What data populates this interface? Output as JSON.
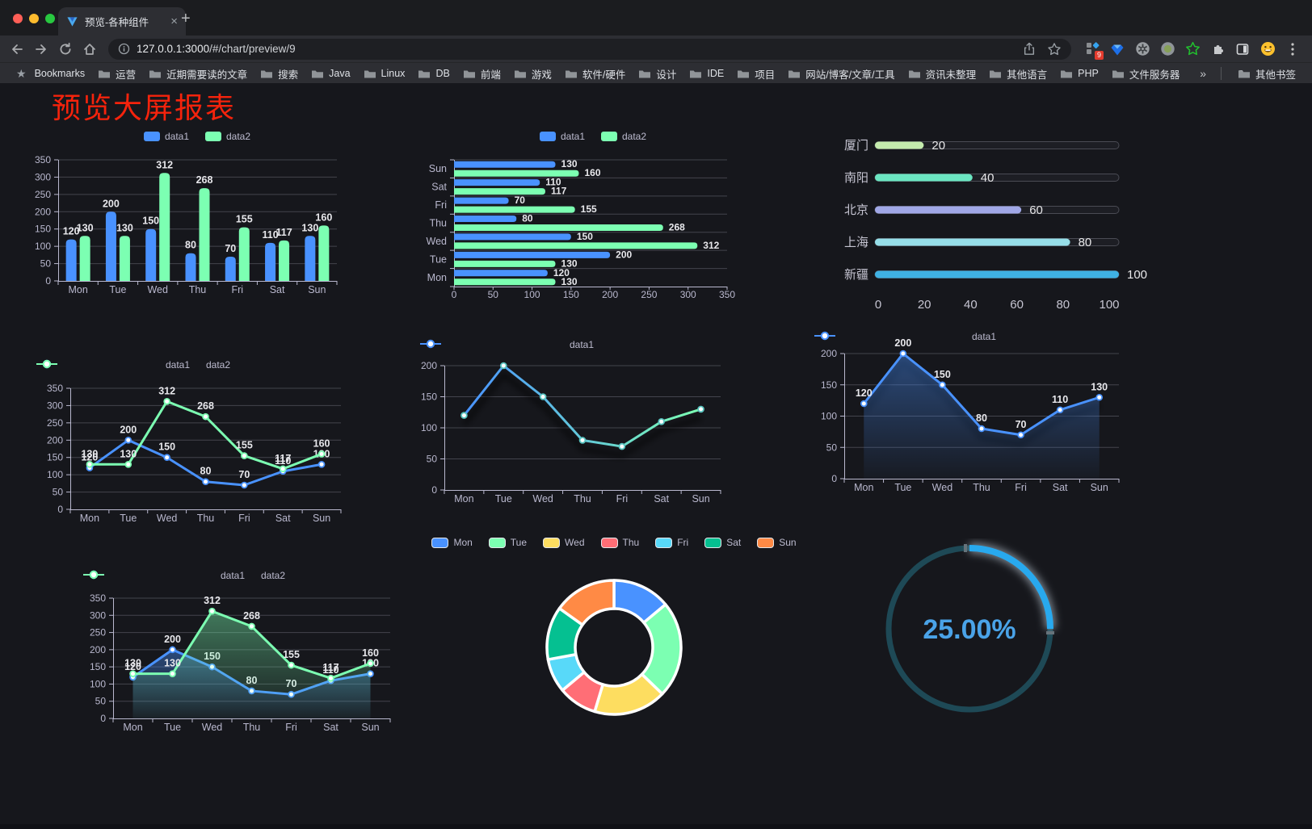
{
  "browser": {
    "traffic_lights": [
      "#ff5f57",
      "#febc2e",
      "#28c840"
    ],
    "tab": {
      "title": "预览-各种组件",
      "close_glyph": "×",
      "new_tab_glyph": "+"
    },
    "url": {
      "host": "127.0.0.1:3000",
      "path": "/#/chart/preview/9"
    },
    "extensions_badge": "9",
    "menu_glyph": "⋮",
    "bookmarks": {
      "label": "Bookmarks",
      "star_glyph": "★",
      "items": [
        "运营",
        "近期需要读的文章",
        "搜索",
        "Java",
        "Linux",
        "DB",
        "前端",
        "游戏",
        "软件/硬件",
        "设计",
        "IDE",
        "项目",
        "网站/博客/文章/工具",
        "资讯未整理",
        "其他语言",
        "PHP",
        "文件服务器"
      ],
      "overflow_glyph": "»",
      "other_label": "其他书签"
    }
  },
  "page": {
    "title": "预览大屏报表",
    "title_color": "#f5230c",
    "background": "#16171c"
  },
  "theme": {
    "axis_color": "#b9b8ce",
    "grid_color": "#43444d",
    "data_label_color": "#e8e8ec",
    "legend_text_color": "#bdbcd0"
  },
  "chart_data": [
    {
      "id": "bar-grouped",
      "type": "bar",
      "legend_position": "top",
      "grid": true,
      "categories": [
        "Mon",
        "Tue",
        "Wed",
        "Thu",
        "Fri",
        "Sat",
        "Sun"
      ],
      "series": [
        {
          "name": "data1",
          "color": "#4992ff",
          "values": [
            120,
            200,
            150,
            80,
            70,
            110,
            130
          ]
        },
        {
          "name": "data2",
          "color": "#7cffb2",
          "values": [
            130,
            130,
            312,
            268,
            155,
            117,
            160
          ]
        }
      ],
      "ylim": [
        0,
        350
      ],
      "ytick": 50,
      "value_labels": true
    },
    {
      "id": "bar-horizontal",
      "type": "bar-horizontal",
      "legend_position": "top",
      "grid": true,
      "categories_top_to_bottom": [
        "Sun",
        "Sat",
        "Fri",
        "Thu",
        "Wed",
        "Tue",
        "Mon"
      ],
      "series": [
        {
          "name": "data1",
          "color": "#4992ff",
          "values": [
            130,
            110,
            70,
            80,
            150,
            200,
            120
          ]
        },
        {
          "name": "data2",
          "color": "#7cffb2",
          "values": [
            160,
            117,
            155,
            268,
            312,
            130,
            130
          ]
        }
      ],
      "xlim": [
        0,
        350
      ],
      "xtick": 50,
      "value_labels": true
    },
    {
      "id": "progress",
      "type": "progress",
      "max": 100,
      "axis_ticks": [
        0,
        20,
        40,
        60,
        80,
        100
      ],
      "items": [
        {
          "label": "厦门",
          "value": 20,
          "color": "#c4ebad"
        },
        {
          "label": "南阳",
          "value": 40,
          "color": "#6be6c1"
        },
        {
          "label": "北京",
          "value": 60,
          "color": "#a0a7e6"
        },
        {
          "label": "上海",
          "value": 80,
          "color": "#96dee8"
        },
        {
          "label": "新疆",
          "value": 100,
          "color": "#3fb1e3"
        }
      ]
    },
    {
      "id": "line-dual",
      "type": "line",
      "legend_position": "top",
      "grid": true,
      "categories": [
        "Mon",
        "Tue",
        "Wed",
        "Thu",
        "Fri",
        "Sat",
        "Sun"
      ],
      "series": [
        {
          "name": "data1",
          "color": "#4992ff",
          "values": [
            120,
            200,
            150,
            80,
            70,
            110,
            130
          ]
        },
        {
          "name": "data2",
          "color": "#7cffb2",
          "values": [
            130,
            130,
            312,
            268,
            155,
            117,
            160
          ]
        }
      ],
      "ylim": [
        0,
        350
      ],
      "ytick": 50,
      "value_labels": true
    },
    {
      "id": "line-gradient",
      "type": "line",
      "legend_position": "top",
      "grid": true,
      "categories": [
        "Mon",
        "Tue",
        "Wed",
        "Thu",
        "Fri",
        "Sat",
        "Sun"
      ],
      "series": [
        {
          "name": "data1",
          "gradient": [
            "#4992ff",
            "#7cffb2"
          ],
          "color": "#4992ff",
          "values": [
            120,
            200,
            150,
            80,
            70,
            110,
            130
          ],
          "shadow": true
        }
      ],
      "ylim": [
        0,
        200
      ],
      "ytick": 50,
      "value_labels": false
    },
    {
      "id": "line-area",
      "type": "line",
      "legend_position": "top",
      "grid": true,
      "categories": [
        "Mon",
        "Tue",
        "Wed",
        "Thu",
        "Fri",
        "Sat",
        "Sun"
      ],
      "series": [
        {
          "name": "data1",
          "color": "#4992ff",
          "values": [
            120,
            200,
            150,
            80,
            70,
            110,
            130
          ],
          "area": true,
          "shadow": true
        }
      ],
      "ylim": [
        0,
        200
      ],
      "ytick": 50,
      "value_labels": true
    },
    {
      "id": "area-dual",
      "type": "line",
      "legend_position": "top",
      "grid": true,
      "categories": [
        "Mon",
        "Tue",
        "Wed",
        "Thu",
        "Fri",
        "Sat",
        "Sun"
      ],
      "series": [
        {
          "name": "data1",
          "color": "#4992ff",
          "values": [
            120,
            200,
            150,
            80,
            70,
            110,
            130
          ],
          "area": true
        },
        {
          "name": "data2",
          "color": "#7cffb2",
          "values": [
            130,
            130,
            312,
            268,
            155,
            117,
            160
          ],
          "area": true
        }
      ],
      "ylim": [
        0,
        350
      ],
      "ytick": 50,
      "value_labels": true
    },
    {
      "id": "donut",
      "type": "pie",
      "legend_position": "top",
      "inner_radius_ratio": 0.58,
      "start_angle_deg": -90,
      "clockwise": true,
      "items": [
        {
          "label": "Mon",
          "value": 120,
          "color": "#4992ff"
        },
        {
          "label": "Tue",
          "value": 200,
          "color": "#7cffb2"
        },
        {
          "label": "Wed",
          "value": 150,
          "color": "#fddd60"
        },
        {
          "label": "Thu",
          "value": 80,
          "color": "#ff6e76"
        },
        {
          "label": "Fri",
          "value": 70,
          "color": "#58d9f9"
        },
        {
          "label": "Sat",
          "value": 110,
          "color": "#05c091"
        },
        {
          "label": "Sun",
          "value": 130,
          "color": "#ff8a45"
        }
      ]
    },
    {
      "id": "gauge",
      "type": "gauge",
      "value": 25,
      "max": 100,
      "display": "25.00%",
      "color": "#28a9ee",
      "track_color": "#1e4956",
      "text_color": "#4aa3e8"
    }
  ]
}
